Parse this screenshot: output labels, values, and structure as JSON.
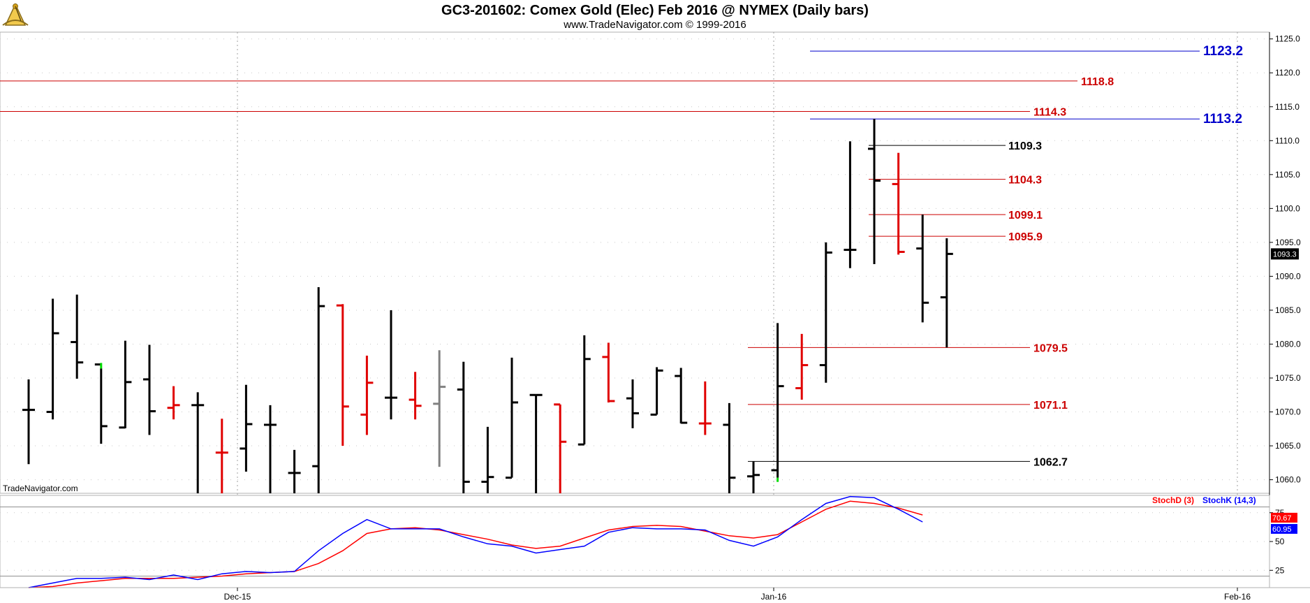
{
  "title": "GC3-201602:  Comex Gold (Elec) Feb 2016 @ NYMEX  (Daily bars)",
  "subtitle": "www.TradeNavigator.com © 1999-2016",
  "watermark": "TradeNavigator.com",
  "logo_icon": "sextant-logo-icon",
  "colors": {
    "up_bar": "#000000",
    "down_bar": "#e00000",
    "neutral_bar": "#808080",
    "level_blue": "#0000cc",
    "level_red": "#cc0000",
    "level_black": "#000000",
    "stoch_d": "#ff0000",
    "stoch_k": "#0000ff",
    "marker_green": "#00dd00"
  },
  "chart_data": [
    {
      "type": "ohlc",
      "title": "GC3-201602:  Comex Gold (Elec) Feb 2016 @ NYMEX  (Daily bars)",
      "ylim": [
        1058,
        1126
      ],
      "y_ticks": [
        "1060.0",
        "1065.0",
        "1070.0",
        "1075.0",
        "1080.0",
        "1085.0",
        "1090.0",
        "1095.0",
        "1100.0",
        "1105.0",
        "1110.0",
        "1115.0",
        "1120.0",
        "1125.0"
      ],
      "x_ticks": [
        "Dec-15",
        "Jan-16",
        "Feb-16"
      ],
      "grid": true,
      "last_price_label": "1093.3",
      "bars": [
        {
          "open": 1070.3,
          "high": 1074.8,
          "low": 1062.3,
          "close": 1070.3,
          "color": "black"
        },
        {
          "open": 1070.0,
          "high": 1086.7,
          "low": 1068.9,
          "close": 1081.6,
          "color": "black"
        },
        {
          "open": 1080.3,
          "high": 1087.3,
          "low": 1074.9,
          "close": 1077.3,
          "color": "black"
        },
        {
          "open": 1077.0,
          "high": 1076.4,
          "low": 1065.3,
          "close": 1067.9,
          "color": "black",
          "marker": "green-top"
        },
        {
          "open": 1067.7,
          "high": 1080.5,
          "low": 1067.6,
          "close": 1074.4,
          "color": "black"
        },
        {
          "open": 1074.8,
          "high": 1079.9,
          "low": 1066.6,
          "close": 1070.1,
          "color": "black"
        },
        {
          "open": 1070.6,
          "high": 1073.8,
          "low": 1068.9,
          "close": 1071.0,
          "color": "red"
        },
        {
          "open": 1071.0,
          "high": 1072.9,
          "low": 1058.0,
          "close": 1071.0,
          "color": "black"
        },
        {
          "open": 1064.0,
          "high": 1069.0,
          "low": 1058.0,
          "close": 1064.0,
          "color": "red"
        },
        {
          "open": 1064.6,
          "high": 1074.0,
          "low": 1061.2,
          "close": 1068.2,
          "color": "black"
        },
        {
          "open": 1068.1,
          "high": 1071.0,
          "low": 1058.0,
          "close": 1068.1,
          "color": "black"
        },
        {
          "open": 1061.0,
          "high": 1064.4,
          "low": 1058.0,
          "close": 1061.0,
          "color": "black"
        },
        {
          "open": 1062.0,
          "high": 1088.4,
          "low": 1058.0,
          "close": 1085.6,
          "color": "black"
        },
        {
          "open": 1085.7,
          "high": 1085.9,
          "low": 1065.0,
          "close": 1070.8,
          "color": "red"
        },
        {
          "open": 1069.6,
          "high": 1078.3,
          "low": 1066.6,
          "close": 1074.3,
          "color": "red"
        },
        {
          "open": 1072.1,
          "high": 1085.0,
          "low": 1068.9,
          "close": 1072.1,
          "color": "black"
        },
        {
          "open": 1071.8,
          "high": 1075.9,
          "low": 1068.9,
          "close": 1070.9,
          "color": "red"
        },
        {
          "open": 1071.2,
          "high": 1079.1,
          "low": 1061.9,
          "close": 1073.7,
          "color": "gray"
        },
        {
          "open": 1073.3,
          "high": 1077.4,
          "low": 1058.0,
          "close": 1059.7,
          "color": "black"
        },
        {
          "open": 1059.7,
          "high": 1067.8,
          "low": 1058.0,
          "close": 1060.4,
          "color": "black"
        },
        {
          "open": 1060.3,
          "high": 1078.0,
          "low": 1060.3,
          "close": 1071.4,
          "color": "black"
        },
        {
          "open": 1072.5,
          "high": 1072.5,
          "low": 1058.0,
          "close": 1072.5,
          "color": "black"
        },
        {
          "open": 1071.1,
          "high": 1071.1,
          "low": 1058.0,
          "close": 1065.6,
          "color": "red"
        },
        {
          "open": 1065.2,
          "high": 1081.3,
          "low": 1065.2,
          "close": 1077.8,
          "color": "black"
        },
        {
          "open": 1078.1,
          "high": 1080.2,
          "low": 1071.4,
          "close": 1071.6,
          "color": "red"
        },
        {
          "open": 1072.0,
          "high": 1074.8,
          "low": 1067.6,
          "close": 1069.8,
          "color": "black"
        },
        {
          "open": 1069.6,
          "high": 1076.6,
          "low": 1069.6,
          "close": 1076.1,
          "color": "black"
        },
        {
          "open": 1075.3,
          "high": 1076.5,
          "low": 1068.3,
          "close": 1068.4,
          "color": "black"
        },
        {
          "open": 1068.3,
          "high": 1074.5,
          "low": 1066.6,
          "close": 1068.3,
          "color": "red"
        },
        {
          "open": 1068.1,
          "high": 1071.3,
          "low": 1058.0,
          "close": 1060.3,
          "color": "black"
        },
        {
          "open": 1060.5,
          "high": 1062.7,
          "low": 1058.0,
          "close": 1060.7,
          "color": "black"
        },
        {
          "open": 1061.4,
          "high": 1083.1,
          "low": 1060.3,
          "close": 1073.8,
          "color": "black",
          "marker": "green-bottom"
        },
        {
          "open": 1073.5,
          "high": 1081.5,
          "low": 1071.8,
          "close": 1076.9,
          "color": "red"
        },
        {
          "open": 1076.9,
          "high": 1095.0,
          "low": 1074.3,
          "close": 1093.5,
          "color": "black"
        },
        {
          "open": 1093.9,
          "high": 1109.9,
          "low": 1091.2,
          "close": 1093.9,
          "color": "black"
        },
        {
          "open": 1108.8,
          "high": 1113.2,
          "low": 1091.8,
          "close": 1104.1,
          "color": "black"
        },
        {
          "open": 1103.6,
          "high": 1108.2,
          "low": 1093.2,
          "close": 1093.6,
          "color": "red"
        },
        {
          "open": 1094.1,
          "high": 1099.1,
          "low": 1083.2,
          "close": 1086.1,
          "color": "black"
        },
        {
          "open": 1086.9,
          "high": 1095.6,
          "low": 1079.5,
          "close": 1093.3,
          "color": "black"
        }
      ],
      "levels": [
        {
          "value": 1123.2,
          "label": "1123.2",
          "style": "blue-big",
          "start": "Jan-16"
        },
        {
          "value": 1118.8,
          "label": "1118.8",
          "style": "red",
          "start": "left"
        },
        {
          "value": 1114.3,
          "label": "1114.3",
          "style": "red",
          "start": "left"
        },
        {
          "value": 1113.2,
          "label": "1113.2",
          "style": "blue-big",
          "start": "Jan-16"
        },
        {
          "value": 1109.3,
          "label": "1109.3",
          "style": "black",
          "start": "bar-35"
        },
        {
          "value": 1104.3,
          "label": "1104.3",
          "style": "red",
          "start": "bar-35"
        },
        {
          "value": 1099.1,
          "label": "1099.1",
          "style": "red",
          "start": "bar-35"
        },
        {
          "value": 1095.9,
          "label": "1095.9",
          "style": "red",
          "start": "bar-35"
        },
        {
          "value": 1079.5,
          "label": "1079.5",
          "style": "red",
          "start": "bar-30"
        },
        {
          "value": 1071.1,
          "label": "1071.1",
          "style": "red",
          "start": "bar-30"
        },
        {
          "value": 1062.7,
          "label": "1062.7",
          "style": "black",
          "start": "bar-30"
        }
      ]
    },
    {
      "type": "line",
      "title": "",
      "ylim": [
        10,
        90
      ],
      "y_ticks": [
        "25",
        "50",
        "75"
      ],
      "reference_lines": [
        20,
        80
      ],
      "series": [
        {
          "name": "StochD (3)",
          "color": "#ff0000",
          "last_label": "70.67",
          "values": [
            10,
            11,
            14,
            16,
            18,
            18,
            18,
            19,
            20,
            22,
            23,
            24,
            31,
            42,
            57,
            61,
            62,
            60,
            56,
            52,
            47,
            44,
            46,
            53,
            60,
            63,
            64,
            63,
            59,
            55,
            53,
            56,
            67,
            78,
            85,
            83,
            79,
            73,
            null
          ]
        },
        {
          "name": "StochK (14,3)",
          "color": "#0000ff",
          "last_label": "60.95",
          "values": [
            10,
            14,
            18,
            18,
            19,
            17,
            21,
            17,
            22,
            24,
            23,
            24,
            42,
            57,
            69,
            61,
            61,
            61,
            54,
            48,
            46,
            40,
            43,
            46,
            58,
            62,
            61,
            61,
            60,
            51,
            46,
            54,
            69,
            83,
            89,
            88,
            78,
            67,
            null
          ]
        }
      ]
    }
  ]
}
